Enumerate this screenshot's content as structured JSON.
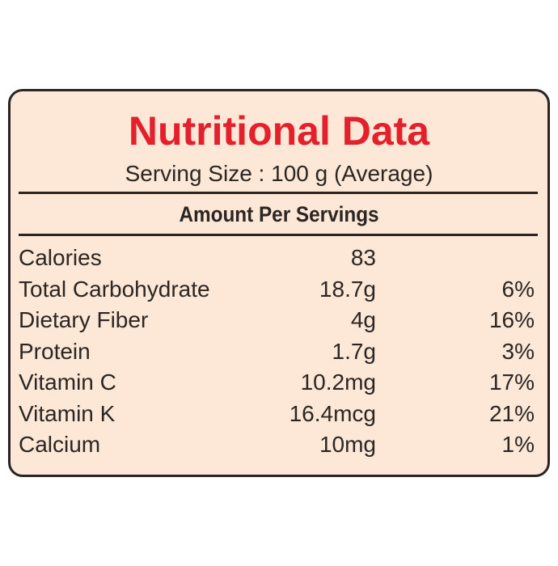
{
  "label": {
    "title": "Nutritional Data",
    "serving_size": "Serving Size : 100 g (Average)",
    "header": "Amount Per Servings",
    "rows": [
      {
        "name": "Calories",
        "amount": "83"
      },
      {
        "name": "Total Carbohydrate",
        "amount": "18.7g",
        "daily_value": "6%"
      },
      {
        "name": "Dietary Fiber",
        "amount": "4g",
        "daily_value": "16%"
      },
      {
        "name": "Protein",
        "amount": "1.7g",
        "daily_value": "3%"
      },
      {
        "name": "Vitamin C",
        "amount": "10.2mg",
        "daily_value": "17%"
      },
      {
        "name": "Vitamin K",
        "amount": "16.4mcg",
        "daily_value": "21%"
      },
      {
        "name": "Calcium",
        "amount": "10mg",
        "daily_value": "1%"
      }
    ]
  }
}
